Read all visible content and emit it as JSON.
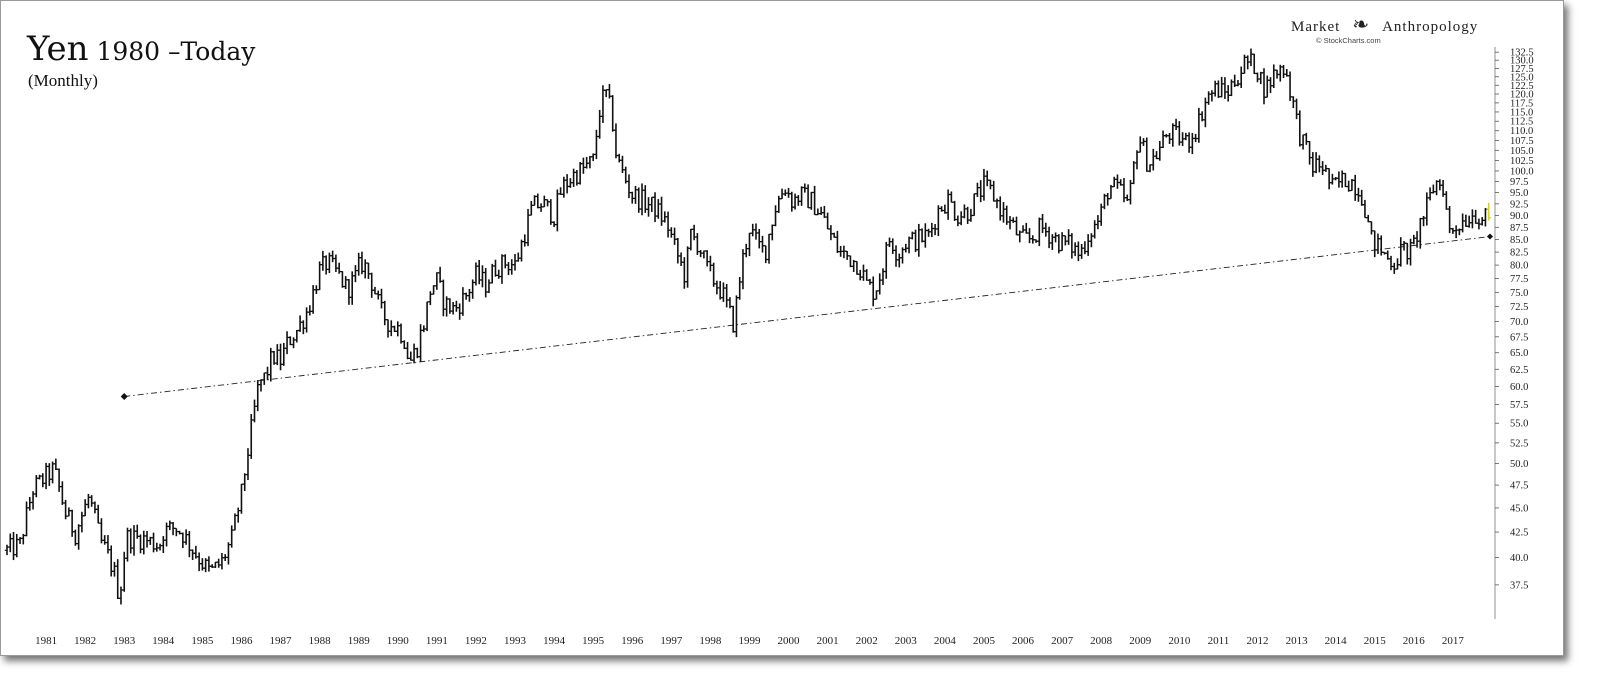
{
  "header": {
    "title_main": "Yen",
    "title_rest": "1980 –Today",
    "subtitle": "(Monthly)",
    "brand_left": "Market",
    "brand_right": "Anthropology",
    "credit": "© StockCharts.com"
  },
  "chart_data": {
    "type": "ohlc-bar",
    "title": "Yen 1980 –Today",
    "subtitle": "(Monthly)",
    "xlabel": "",
    "ylabel": "",
    "x_range": [
      1980.0,
      2017.95
    ],
    "ylim": [
      35.5,
      133.5
    ],
    "y_scale": "log",
    "grid": false,
    "legend": "none",
    "x_tick_labels": [
      "1981",
      "1982",
      "1983",
      "1984",
      "1985",
      "1986",
      "1987",
      "1988",
      "1989",
      "1990",
      "1991",
      "1992",
      "1993",
      "1994",
      "1995",
      "1996",
      "1997",
      "1998",
      "1999",
      "2000",
      "2001",
      "2002",
      "2003",
      "2004",
      "2005",
      "2006",
      "2007",
      "2008",
      "2009",
      "2010",
      "2011",
      "2012",
      "2013",
      "2014",
      "2015",
      "2016",
      "2017"
    ],
    "y_tick_labels": [
      "37.5",
      "40.0",
      "42.5",
      "45.0",
      "47.5",
      "50.0",
      "52.5",
      "55.0",
      "57.5",
      "60.0",
      "62.5",
      "65.0",
      "67.5",
      "70.0",
      "72.5",
      "75.0",
      "77.5",
      "80.0",
      "82.5",
      "85.0",
      "87.5",
      "90.0",
      "92.5",
      "95.0",
      "97.5",
      "100.0",
      "102.5",
      "105.0",
      "107.5",
      "110.0",
      "112.5",
      "115.0",
      "117.5",
      "120.0",
      "122.5",
      "125.0",
      "127.5",
      "130.0",
      "132.5"
    ],
    "last_value": 88.9,
    "last_value_color": "#d8d020",
    "series": [
      {
        "ticks": [
          [
            1980.0,
            40.7
          ],
          [
            1980.33,
            41.2
          ],
          [
            1980.66,
            47.0
          ],
          [
            1981.0,
            48.5
          ],
          [
            1981.2,
            49.3
          ],
          [
            1981.5,
            44.4
          ],
          [
            1981.75,
            42.4
          ],
          [
            1982.1,
            46.2
          ],
          [
            1982.4,
            41.5
          ],
          [
            1982.55,
            40.5
          ],
          [
            1982.75,
            38.5
          ],
          [
            1982.88,
            36.3
          ],
          [
            1983.05,
            42.0
          ],
          [
            1983.5,
            41.8
          ],
          [
            1983.9,
            41.2
          ],
          [
            1984.0,
            42.5
          ],
          [
            1984.3,
            43.0
          ],
          [
            1984.5,
            42.3
          ],
          [
            1984.75,
            40.8
          ],
          [
            1985.0,
            39.5
          ],
          [
            1985.2,
            38.6
          ],
          [
            1985.5,
            39.6
          ],
          [
            1985.75,
            41.8
          ],
          [
            1986.0,
            46.5
          ],
          [
            1986.2,
            52.5
          ],
          [
            1986.45,
            60.5
          ],
          [
            1986.6,
            61.3
          ],
          [
            1986.8,
            64.5
          ],
          [
            1987.0,
            63.8
          ],
          [
            1987.2,
            66.8
          ],
          [
            1987.45,
            68.8
          ],
          [
            1987.7,
            72.0
          ],
          [
            1987.85,
            75.3
          ],
          [
            1988.0,
            79.0
          ],
          [
            1988.2,
            80.5
          ],
          [
            1988.5,
            78.0
          ],
          [
            1988.7,
            75.5
          ],
          [
            1988.9,
            77.5
          ],
          [
            1989.05,
            80.5
          ],
          [
            1989.2,
            79.5
          ],
          [
            1989.4,
            75.5
          ],
          [
            1989.55,
            71.8
          ],
          [
            1989.8,
            69.5
          ],
          [
            1990.0,
            69.0
          ],
          [
            1990.15,
            67.5
          ],
          [
            1990.3,
            63.5
          ],
          [
            1990.5,
            66.0
          ],
          [
            1990.7,
            70.5
          ],
          [
            1990.85,
            76.0
          ],
          [
            1991.0,
            77.0
          ],
          [
            1991.2,
            73.0
          ],
          [
            1991.45,
            72.0
          ],
          [
            1991.75,
            74.5
          ],
          [
            1992.0,
            78.0
          ],
          [
            1992.25,
            76.5
          ],
          [
            1992.5,
            79.5
          ],
          [
            1992.75,
            80.5
          ],
          [
            1993.0,
            80.0
          ],
          [
            1993.2,
            85.0
          ],
          [
            1993.45,
            92.0
          ],
          [
            1993.7,
            92.5
          ],
          [
            1994.0,
            90.0
          ],
          [
            1994.2,
            96.0
          ],
          [
            1994.5,
            99.0
          ],
          [
            1994.75,
            100.5
          ],
          [
            1995.0,
            102.5
          ],
          [
            1995.2,
            118.0
          ],
          [
            1995.35,
            120.0
          ],
          [
            1995.5,
            112.0
          ],
          [
            1995.6,
            103.0
          ],
          [
            1995.8,
            98.5
          ],
          [
            1996.0,
            94.5
          ],
          [
            1996.3,
            93.0
          ],
          [
            1996.6,
            91.5
          ],
          [
            1996.9,
            88.0
          ],
          [
            1997.1,
            83.0
          ],
          [
            1997.35,
            78.0
          ],
          [
            1997.5,
            86.0
          ],
          [
            1997.7,
            84.0
          ],
          [
            1997.9,
            79.5
          ],
          [
            1998.1,
            77.0
          ],
          [
            1998.3,
            75.0
          ],
          [
            1998.45,
            72.0
          ],
          [
            1998.6,
            69.5
          ],
          [
            1998.8,
            80.0
          ],
          [
            1999.0,
            87.5
          ],
          [
            1999.2,
            84.0
          ],
          [
            1999.4,
            82.5
          ],
          [
            1999.65,
            91.5
          ],
          [
            1999.9,
            96.5
          ],
          [
            2000.1,
            93.0
          ],
          [
            2000.3,
            94.5
          ],
          [
            2000.6,
            93.0
          ],
          [
            2000.85,
            90.0
          ],
          [
            2001.1,
            85.5
          ],
          [
            2001.3,
            82.5
          ],
          [
            2001.55,
            81.5
          ],
          [
            2001.8,
            80.0
          ],
          [
            2002.0,
            76.5
          ],
          [
            2002.2,
            75.0
          ],
          [
            2002.4,
            79.5
          ],
          [
            2002.6,
            85.5
          ],
          [
            2002.8,
            82.0
          ],
          [
            2003.0,
            84.5
          ],
          [
            2003.3,
            85.0
          ],
          [
            2003.6,
            86.0
          ],
          [
            2003.85,
            91.5
          ],
          [
            2004.1,
            93.5
          ],
          [
            2004.3,
            90.0
          ],
          [
            2004.6,
            91.0
          ],
          [
            2004.85,
            94.5
          ],
          [
            2005.0,
            96.5
          ],
          [
            2005.2,
            95.0
          ],
          [
            2005.45,
            91.0
          ],
          [
            2005.7,
            88.0
          ],
          [
            2005.95,
            85.0
          ],
          [
            2006.2,
            85.0
          ],
          [
            2006.45,
            87.5
          ],
          [
            2006.7,
            86.0
          ],
          [
            2006.95,
            84.5
          ],
          [
            2007.2,
            84.0
          ],
          [
            2007.45,
            82.0
          ],
          [
            2007.7,
            86.5
          ],
          [
            2007.95,
            89.0
          ],
          [
            2008.2,
            96.5
          ],
          [
            2008.45,
            95.5
          ],
          [
            2008.7,
            92.0
          ],
          [
            2008.95,
            109.0
          ],
          [
            2009.2,
            101.5
          ],
          [
            2009.45,
            104.5
          ],
          [
            2009.7,
            109.5
          ],
          [
            2009.95,
            108.5
          ],
          [
            2010.2,
            107.0
          ],
          [
            2010.45,
            111.0
          ],
          [
            2010.7,
            119.0
          ],
          [
            2010.95,
            121.5
          ],
          [
            2011.2,
            120.0
          ],
          [
            2011.45,
            124.5
          ],
          [
            2011.7,
            129.5
          ],
          [
            2011.95,
            128.5
          ],
          [
            2012.2,
            121.0
          ],
          [
            2012.45,
            126.5
          ],
          [
            2012.7,
            128.0
          ],
          [
            2012.9,
            118.0
          ],
          [
            2013.05,
            110.0
          ],
          [
            2013.2,
            106.0
          ],
          [
            2013.4,
            101.0
          ],
          [
            2013.65,
            101.5
          ],
          [
            2013.9,
            96.0
          ],
          [
            2014.2,
            98.0
          ],
          [
            2014.45,
            97.5
          ],
          [
            2014.7,
            94.0
          ],
          [
            2014.9,
            85.0
          ],
          [
            2015.1,
            83.5
          ],
          [
            2015.3,
            81.5
          ],
          [
            2015.5,
            80.5
          ],
          [
            2015.7,
            83.0
          ],
          [
            2015.95,
            82.5
          ],
          [
            2016.15,
            88.0
          ],
          [
            2016.35,
            92.0
          ],
          [
            2016.55,
            97.5
          ],
          [
            2016.75,
            96.5
          ],
          [
            2016.9,
            86.5
          ],
          [
            2017.1,
            88.0
          ],
          [
            2017.35,
            89.5
          ],
          [
            2017.55,
            90.5
          ],
          [
            2017.75,
            89.5
          ],
          [
            2017.95,
            88.5
          ]
        ]
      }
    ],
    "trendline": {
      "style": "dash-dot",
      "points": [
        [
          1983.0,
          58.6
        ],
        [
          2017.95,
          85.6
        ]
      ]
    }
  }
}
